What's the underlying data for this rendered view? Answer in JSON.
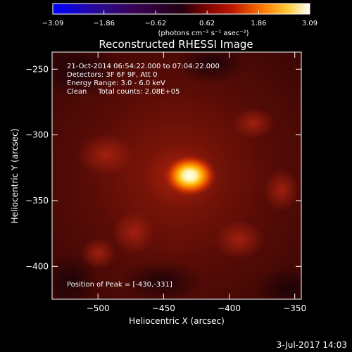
{
  "colorbar": {
    "ticks": [
      "-3.09",
      "-1.86",
      "-0.62",
      "0.62",
      "1.86",
      "3.09"
    ],
    "unit_label": "(photons cm⁻² s⁻¹ asec⁻²)",
    "range": [
      -3.09,
      3.09
    ]
  },
  "title": "Reconstructed RHESSI Image",
  "info_lines": [
    "21-Oct-2014 06:54:22.000 to 07:04:22.000",
    "Detectors: 3F 6F 9F, Att 0",
    "Energy Range: 3.0 - 6.0 keV",
    "Clean     Total counts: 2.08E+05"
  ],
  "peak_label": "Position of Peak = [-430,-331]",
  "timestamp": "3-Jul-2017 14:03",
  "chart_data": {
    "type": "heatmap",
    "title": "Reconstructed RHESSI Image",
    "xlabel": "Heliocentric X (arcsec)",
    "ylabel": "Heliocentric Y (arcsec)",
    "xlim": [
      -535,
      -345
    ],
    "ylim": [
      -425,
      -237
    ],
    "xticks": [
      -500,
      -450,
      -400,
      -350
    ],
    "yticks": [
      -250,
      -300,
      -350,
      -400
    ],
    "xtick_labels": [
      "−500",
      "−450",
      "−400",
      "−350"
    ],
    "ytick_labels": [
      "−250",
      "−300",
      "−350",
      "−400"
    ],
    "peak": {
      "x": -430,
      "y": -331
    }
  }
}
